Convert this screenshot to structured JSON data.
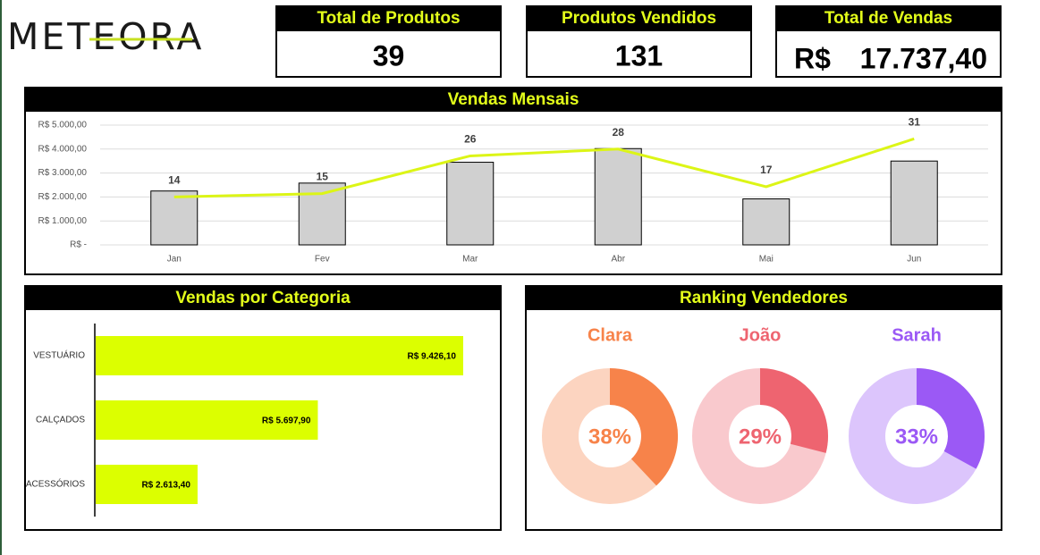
{
  "logo": "METEORA",
  "kpis": [
    {
      "title": "Total de Produtos",
      "value": "39"
    },
    {
      "title": "Produtos Vendidos",
      "value": "131"
    },
    {
      "title": "Total de Vendas",
      "currency": "R$",
      "value": "17.737,40"
    }
  ],
  "chart_data": [
    {
      "type": "bar",
      "title": "Vendas Mensais",
      "categories": [
        "Jan",
        "Fev",
        "Mar",
        "Abr",
        "Mai",
        "Jun"
      ],
      "series": [
        {
          "color": "#d0d0d0",
          "values": [
            2250,
            2580,
            3450,
            4020,
            1920,
            3500
          ]
        },
        {
          "type": "line",
          "axis": "y2",
          "color": "#dcf516",
          "values": [
            14,
            15,
            26,
            28,
            17,
            31
          ]
        }
      ],
      "ylim": [
        0,
        5000
      ],
      "yticks": [
        {
          "value": 0,
          "label": "R$ -"
        },
        {
          "value": 1000,
          "label": "R$ 1.000,00"
        },
        {
          "value": 2000,
          "label": "R$ 2.000,00"
        },
        {
          "value": 3000,
          "label": "R$ 3.000,00"
        },
        {
          "value": 4000,
          "label": "R$ 4.000,00"
        },
        {
          "value": 5000,
          "label": "R$ 5.000,00"
        }
      ],
      "y2lim": [
        0,
        35
      ],
      "grid": true
    },
    {
      "type": "bar",
      "title": "Vendas por Categoria",
      "horizontal": true,
      "categories": [
        "VESTUÁRIO",
        "CALÇADOS",
        "ACESSÓRIOS"
      ],
      "values": [
        9426.1,
        5697.9,
        2613.4
      ],
      "value_labels": [
        "R$ 9.426,10",
        "R$ 5.697,90",
        "R$ 2.613,40"
      ],
      "color": "#dcff00",
      "xlim": [
        0,
        10000
      ]
    },
    {
      "type": "donut",
      "title": "Ranking Vendedores",
      "categories": [
        "Clara",
        "João",
        "Sarah"
      ],
      "values": [
        38,
        29,
        33
      ],
      "value_labels": [
        "38%",
        "29%",
        "33%"
      ],
      "colors": [
        "#f7834a",
        "#ee6470",
        "#9b59f5"
      ]
    }
  ]
}
